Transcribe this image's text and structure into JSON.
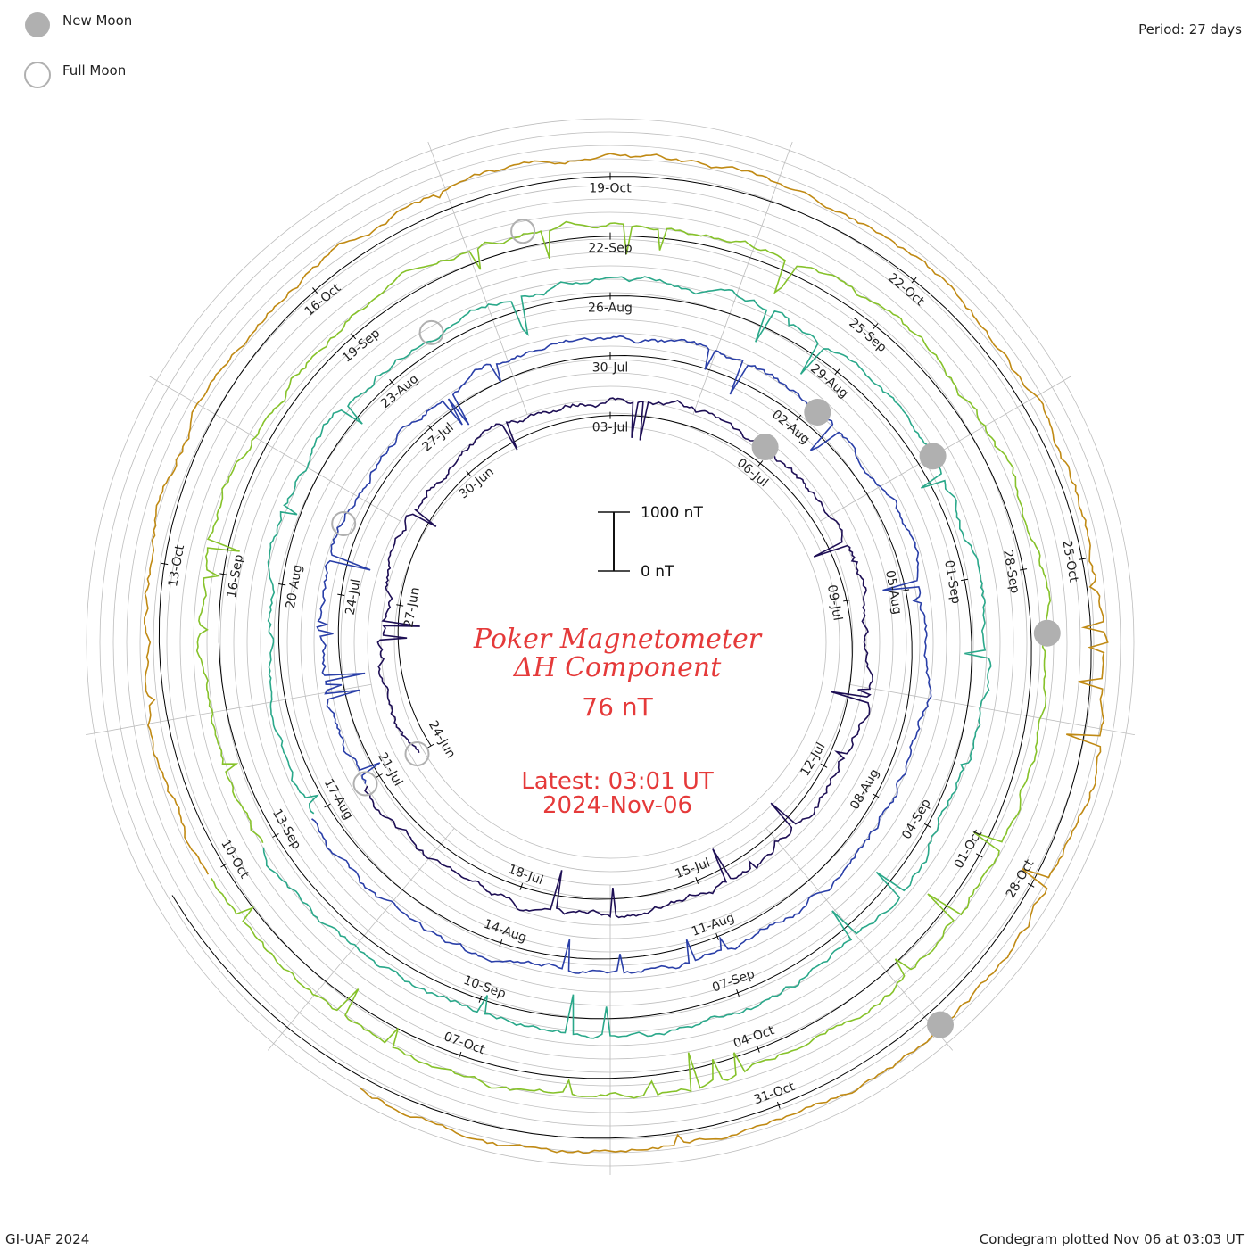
{
  "legend": {
    "new_moon": "New Moon",
    "full_moon": "Full Moon",
    "period": "Period: 27 days"
  },
  "center": {
    "title": "Poker Magnetometer",
    "component": "ΔH Component",
    "value": "76 nT",
    "latest": "Latest: 03:01 UT",
    "date": "2024-Nov-06"
  },
  "scale": {
    "top": "1000 nT",
    "bottom": "0 nT"
  },
  "footer": {
    "left": "GI-UAF 2024",
    "right": "Condegram plotted Nov 06 at 03:03 UT"
  },
  "colors": {
    "title": "#e53a3a",
    "moon_fill": "#b0b0b0",
    "grid": "#bdbdbd"
  },
  "chart_data": {
    "type": "line",
    "plot_kind": "spiral condegram",
    "period_days": 27,
    "cycles": [
      {
        "start": "24-Jun",
        "labels": [
          "24-Jun",
          "27-Jun",
          "30-Jun",
          "03-Jul",
          "06-Jul",
          "09-Jul",
          "12-Jul",
          "15-Jul",
          "18-Jul"
        ],
        "color": "#1e0f55"
      },
      {
        "start": "21-Jul",
        "labels": [
          "21-Jul",
          "24-Jul",
          "27-Jul",
          "30-Jul",
          "02-Aug",
          "05-Aug",
          "08-Aug",
          "11-Aug",
          "14-Aug"
        ],
        "color": "#2a3fa8"
      },
      {
        "start": "17-Aug",
        "labels": [
          "17-Aug",
          "20-Aug",
          "23-Aug",
          "26-Aug",
          "29-Aug",
          "01-Sep",
          "04-Sep",
          "07-Sep",
          "10-Sep"
        ],
        "color": "#2aa88a"
      },
      {
        "start": "13-Sep",
        "labels": [
          "13-Sep",
          "16-Sep",
          "19-Sep",
          "22-Sep",
          "25-Sep",
          "28-Sep",
          "01-Oct",
          "04-Oct",
          "07-Oct"
        ],
        "color": "#86c22a"
      },
      {
        "start": "10-Oct",
        "labels": [
          "10-Oct",
          "13-Oct",
          "16-Oct",
          "19-Oct",
          "22-Oct",
          "25-Oct",
          "28-Oct",
          "31-Oct"
        ],
        "color": "#c08a14"
      }
    ],
    "new_moons": [
      "06-Jul",
      "04-Aug",
      "02-Sep",
      "02-Oct",
      "01-Nov"
    ],
    "full_moons": [
      "21-Jun",
      "19-Jul",
      "19-Aug",
      "17-Sep",
      "17-Oct"
    ],
    "y_unit": "nT",
    "scale_bar": [
      0,
      1000
    ],
    "latest_value": 76
  }
}
